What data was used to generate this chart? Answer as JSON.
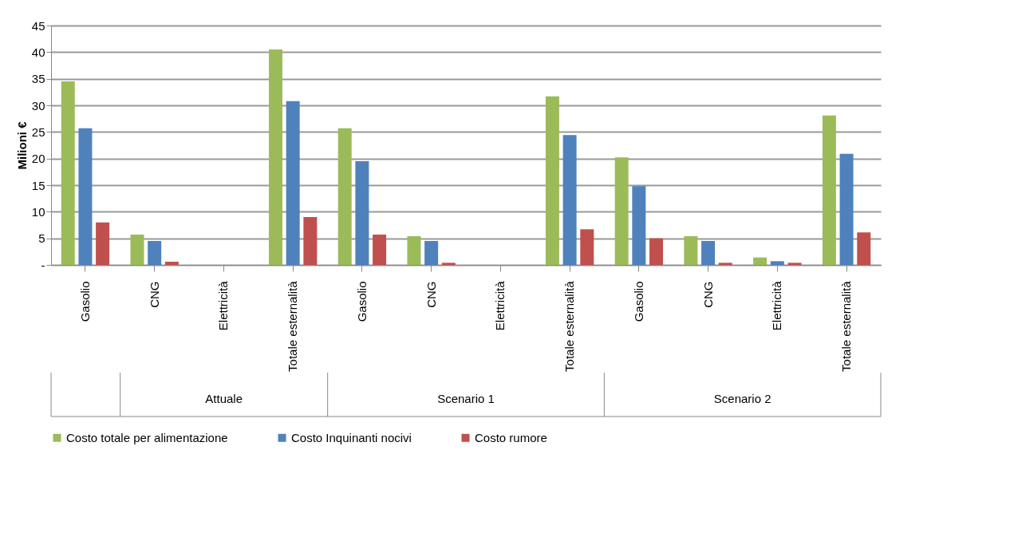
{
  "chart_data": {
    "type": "bar",
    "ylabel": "Milioni €",
    "categories": [
      "Gasolio",
      "CNG",
      "Elettricità",
      "Totale esternalità",
      "Gasolio",
      "CNG",
      "Elettricità",
      "Totale esternalità",
      "Gasolio",
      "CNG",
      "Elettricità",
      "Totale esternalità"
    ],
    "series": [
      {
        "name": "Costo totale per alimentazione",
        "color": "#9bbb59",
        "values": [
          34.5,
          5.7,
          0,
          40.5,
          25.7,
          5.4,
          0,
          31.7,
          20.2,
          5.4,
          1.4,
          28.1
        ]
      },
      {
        "name": "Costo Inquinanti nocivi",
        "color": "#4f81bd",
        "values": [
          25.7,
          4.5,
          0,
          30.8,
          19.5,
          4.5,
          0,
          24.4,
          14.8,
          4.5,
          0.7,
          20.9
        ]
      },
      {
        "name": "Costo rumore",
        "color": "#c0504d",
        "values": [
          8,
          0.6,
          0,
          9,
          5.7,
          0.4,
          0,
          6.7,
          5,
          0.4,
          0.4,
          6.1
        ]
      }
    ],
    "ylim": [
      0,
      45
    ],
    "yticks": [
      {
        "value": 0,
        "label": "-"
      },
      5,
      10,
      15,
      20,
      25,
      30,
      35,
      40,
      45
    ],
    "grid": "y",
    "legend": "bottom",
    "annotations": [
      "Attuale",
      "Scenario 1",
      "Scenario 2"
    ]
  }
}
